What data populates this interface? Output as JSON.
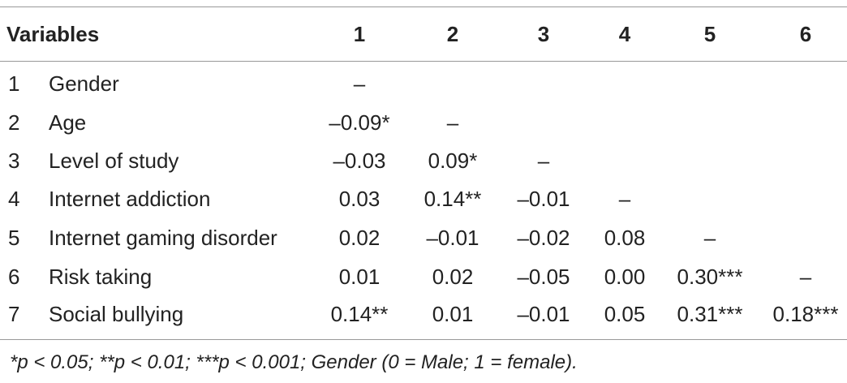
{
  "table": {
    "headers": {
      "variables": "Variables",
      "c1": "1",
      "c2": "2",
      "c3": "3",
      "c4": "4",
      "c5": "5",
      "c6": "6"
    },
    "rows": [
      {
        "num": "1",
        "label": "Gender",
        "c1": "–",
        "c2": "",
        "c3": "",
        "c4": "",
        "c5": "",
        "c6": ""
      },
      {
        "num": "2",
        "label": "Age",
        "c1": "–0.09*",
        "c2": "–",
        "c3": "",
        "c4": "",
        "c5": "",
        "c6": ""
      },
      {
        "num": "3",
        "label": "Level of study",
        "c1": "–0.03",
        "c2": "0.09*",
        "c3": "–",
        "c4": "",
        "c5": "",
        "c6": ""
      },
      {
        "num": "4",
        "label": "Internet addiction",
        "c1": "0.03",
        "c2": "0.14**",
        "c3": "–0.01",
        "c4": "–",
        "c5": "",
        "c6": ""
      },
      {
        "num": "5",
        "label": "Internet gaming disorder",
        "c1": "0.02",
        "c2": "–0.01",
        "c3": "–0.02",
        "c4": "0.08",
        "c5": "–",
        "c6": ""
      },
      {
        "num": "6",
        "label": "Risk taking",
        "c1": "0.01",
        "c2": "0.02",
        "c3": "–0.05",
        "c4": "0.00",
        "c5": "0.30***",
        "c6": "–"
      },
      {
        "num": "7",
        "label": "Social bullying",
        "c1": "0.14**",
        "c2": "0.01",
        "c3": "–0.01",
        "c4": "0.05",
        "c5": "0.31***",
        "c6": "0.18***"
      }
    ],
    "footnote": "*p < 0.05; **p < 0.01; ***p < 0.001; Gender (0 = Male; 1 = female)."
  }
}
